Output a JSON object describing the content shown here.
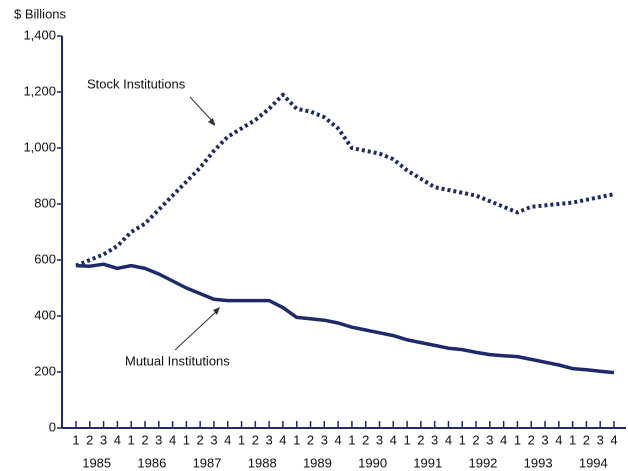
{
  "chart_data": {
    "type": "line",
    "y_axis_label": "$ Billions",
    "categories": [
      "1",
      "2",
      "3",
      "4",
      "1",
      "2",
      "3",
      "4",
      "1",
      "2",
      "3",
      "4",
      "1",
      "2",
      "3",
      "4",
      "1",
      "2",
      "3",
      "4",
      "1",
      "2",
      "3",
      "4",
      "1",
      "2",
      "3",
      "4",
      "1",
      "2",
      "3",
      "4",
      "1",
      "2",
      "3",
      "4",
      "1",
      "2",
      "3",
      "4"
    ],
    "year_labels": [
      "1985",
      "1986",
      "1987",
      "1988",
      "1989",
      "1990",
      "1991",
      "1992",
      "1993",
      "1994"
    ],
    "series": [
      {
        "name": "Stock Institutions",
        "color": "#1f2a6b",
        "style": "dotted",
        "values": [
          580,
          600,
          620,
          650,
          700,
          730,
          780,
          830,
          880,
          930,
          990,
          1040,
          1070,
          1100,
          1140,
          1190,
          1140,
          1130,
          1110,
          1070,
          1000,
          990,
          980,
          960,
          920,
          890,
          860,
          850,
          840,
          830,
          810,
          790,
          770,
          790,
          795,
          800,
          805,
          815,
          825,
          835
        ]
      },
      {
        "name": "Mutual Institutions",
        "color": "#1f2a6b",
        "style": "solid",
        "values": [
          580,
          578,
          585,
          570,
          580,
          570,
          550,
          525,
          500,
          480,
          460,
          455,
          455,
          455,
          455,
          430,
          395,
          390,
          385,
          375,
          360,
          350,
          340,
          330,
          315,
          305,
          295,
          285,
          280,
          270,
          262,
          258,
          255,
          245,
          235,
          225,
          212,
          208,
          203,
          198
        ]
      }
    ],
    "ylim": [
      0,
      1400
    ],
    "yticks": [
      0,
      200,
      400,
      600,
      800,
      {
        "value": 1000,
        "label": "1,000"
      },
      {
        "value": 1200,
        "label": "1,200"
      },
      {
        "value": 1400,
        "label": "1,400"
      }
    ]
  }
}
